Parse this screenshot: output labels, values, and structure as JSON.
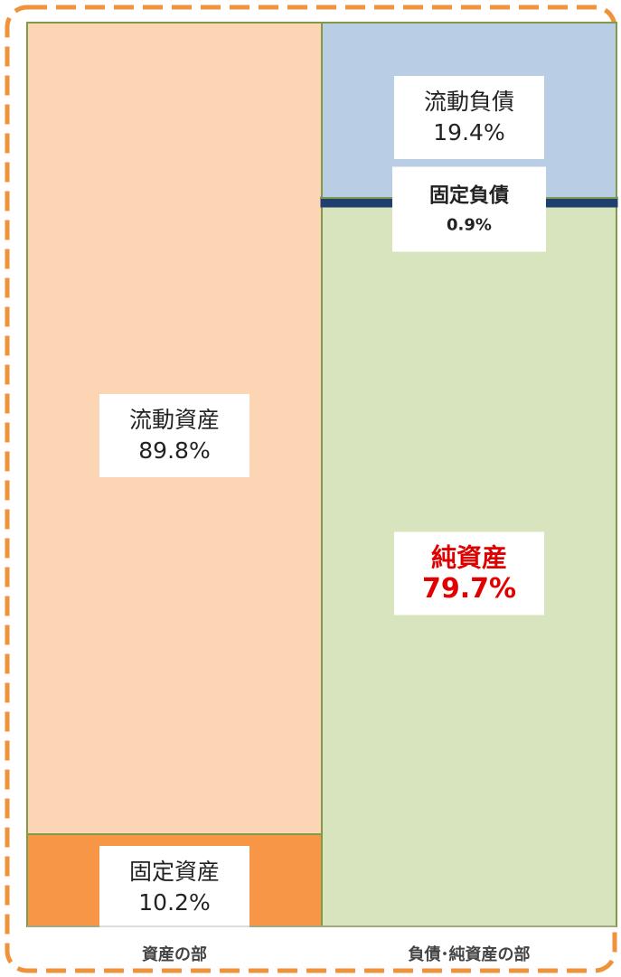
{
  "chart_data": {
    "type": "stacked_bar",
    "categories": [
      "資産の部",
      "負債･純資産の部"
    ],
    "ylim": [
      0,
      100
    ],
    "series": [
      {
        "name": "固定資産",
        "color": "#f79646",
        "values": [
          10.2,
          null
        ],
        "value_labels": [
          "10.2%",
          null
        ]
      },
      {
        "name": "流動資産",
        "color": "#fcd5b5",
        "values": [
          89.8,
          null
        ],
        "value_labels": [
          "89.8%",
          null
        ]
      },
      {
        "name": "純資産",
        "color": "#d7e4bd",
        "label_color": "#e00000",
        "values": [
          null,
          79.7
        ],
        "value_labels": [
          null,
          "79.7%"
        ]
      },
      {
        "name": "固定負債",
        "color": "#1f3f6e",
        "values": [
          null,
          0.9
        ],
        "value_labels": [
          null,
          "0.9%"
        ]
      },
      {
        "name": "流動負債",
        "color": "#b9cde5",
        "values": [
          null,
          19.4
        ],
        "value_labels": [
          null,
          "19.4%"
        ]
      }
    ]
  }
}
